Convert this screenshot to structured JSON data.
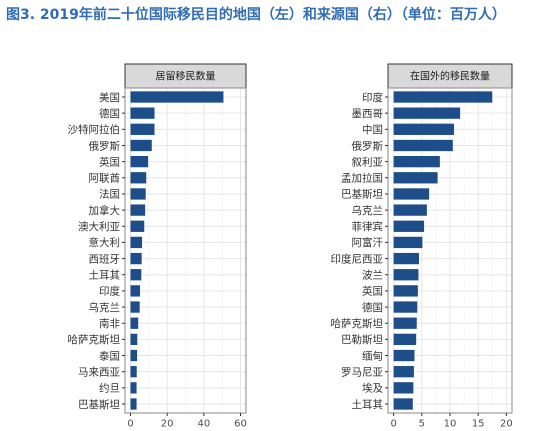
{
  "title": "图3. 2019年前二十位国际移民目的地国（左）和来源国（右）（单位：百万人）",
  "colors": {
    "title": "#2f6db5",
    "bar": "#1d4e89",
    "strip": "#d9d9d9",
    "grid_major": "#e6e6e6",
    "grid_minor": "#f3f3f3",
    "panel_border": "#8a8a8a"
  },
  "chart_data": [
    {
      "type": "bar",
      "orientation": "horizontal",
      "panel_title": "居留移民数量",
      "categories": [
        "美国",
        "德国",
        "沙特阿拉伯",
        "俄罗斯",
        "英国",
        "阿联酋",
        "法国",
        "加拿大",
        "澳大利亚",
        "意大利",
        "西班牙",
        "土耳其",
        "印度",
        "乌克兰",
        "南非",
        "哈萨克斯坦",
        "泰国",
        "马来西亚",
        "约旦",
        "巴基斯坦"
      ],
      "values": [
        50.7,
        13.1,
        13.1,
        11.6,
        9.6,
        8.6,
        8.3,
        8.0,
        7.5,
        6.3,
        6.1,
        5.9,
        5.2,
        5.0,
        4.2,
        3.7,
        3.6,
        3.4,
        3.3,
        3.3
      ],
      "xlim": [
        0,
        60
      ],
      "xticks": [
        0,
        20,
        40,
        60
      ],
      "grid": true,
      "legend": "none"
    },
    {
      "type": "bar",
      "orientation": "horizontal",
      "panel_title": "在国外的移民数量",
      "categories": [
        "印度",
        "墨西哥",
        "中国",
        "俄罗斯",
        "叙利亚",
        "孟加拉国",
        "巴基斯坦",
        "乌克兰",
        "菲律宾",
        "阿富汗",
        "印度尼西亚",
        "波兰",
        "英国",
        "德国",
        "哈萨克斯坦",
        "巴勒斯坦",
        "缅甸",
        "罗马尼亚",
        "埃及",
        "土耳其"
      ],
      "values": [
        17.5,
        11.8,
        10.7,
        10.5,
        8.2,
        7.8,
        6.3,
        5.9,
        5.4,
        5.1,
        4.5,
        4.4,
        4.3,
        4.2,
        4.1,
        4.0,
        3.7,
        3.6,
        3.5,
        3.4
      ],
      "xlim": [
        0,
        20
      ],
      "xticks": [
        0,
        5,
        10,
        15,
        20
      ],
      "grid": true,
      "legend": "none"
    }
  ]
}
